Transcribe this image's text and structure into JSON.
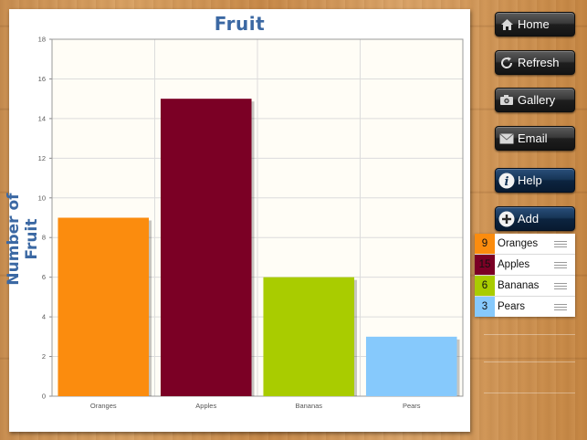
{
  "toolbar": {
    "home_label": "Home",
    "refresh_label": "Refresh",
    "gallery_label": "Gallery",
    "email_label": "Email",
    "help_label": "Help",
    "add_label": "Add",
    "icons": [
      "home-icon",
      "refresh-icon",
      "camera-icon",
      "mail-icon",
      "info-icon",
      "plus-icon"
    ]
  },
  "legend": {
    "items": [
      {
        "value": "9",
        "name": "Oranges",
        "color": "#fb8c0e"
      },
      {
        "value": "15",
        "name": "Apples",
        "color": "#7b0025"
      },
      {
        "value": "6",
        "name": "Bananas",
        "color": "#a9cc00"
      },
      {
        "value": "3",
        "name": "Pears",
        "color": "#86c9fc"
      }
    ]
  },
  "chart_data": {
    "type": "bar",
    "title": "Fruit",
    "xlabel": "",
    "ylabel": "Number of Fruit",
    "categories": [
      "Oranges",
      "Apples",
      "Bananas",
      "Pears"
    ],
    "values": [
      9,
      15,
      6,
      3
    ],
    "colors": [
      "#fb8c0e",
      "#7b0025",
      "#a9cc00",
      "#86c9fc"
    ],
    "ylim": [
      0,
      18
    ],
    "yticks": [
      0,
      2,
      4,
      6,
      8,
      10,
      12,
      14,
      16,
      18
    ],
    "grid": true,
    "plot_background": "#fffdf6"
  }
}
